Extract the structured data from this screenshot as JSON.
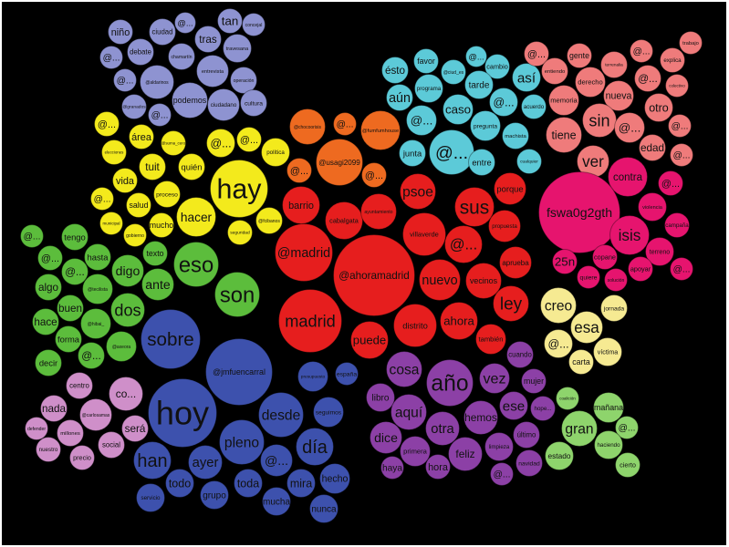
{
  "clusters": [
    {
      "id": "lavender",
      "color": "#8e93d1",
      "words": [
        "niño",
        "ciudad",
        "@...",
        "tan",
        "concejal",
        "tras",
        "@...",
        "debate",
        "chamartín",
        "travesana",
        "@...",
        "@aldarinos",
        "entrevista",
        "operación",
        "@granados",
        "@...",
        "podemos",
        "ciudadano",
        "cultura"
      ]
    },
    {
      "id": "yellow",
      "color": "#f3ea1c",
      "words": [
        "@...",
        "área",
        "@suma_cero",
        "@...",
        "@...",
        "política",
        "elecciones",
        "tuit",
        "quién",
        "hay",
        "vida",
        "@...",
        "proceso",
        "salud",
        "hacer",
        "@fcibanos",
        "municipal",
        "mucho",
        "gobierno",
        "seguridad"
      ]
    },
    {
      "id": "orange",
      "color": "#ee6a20",
      "words": [
        "@chocoorisis",
        "@...",
        "@fumfumhouse",
        "@usagi2099",
        "@...",
        "@..."
      ]
    },
    {
      "id": "red",
      "color": "#e61e1e",
      "words": [
        "barrio",
        "cabalgata",
        "ayuntamiento",
        "psoe",
        "sus",
        "porque",
        "propuesta",
        "villaverde",
        "@...",
        "aprueba",
        "@madrid",
        "@ahoramadrid",
        "nuevo",
        "vecinos",
        "ley",
        "madrid",
        "distrito",
        "ahora",
        "también",
        "puede"
      ]
    },
    {
      "id": "cyan",
      "color": "#5ccad8",
      "words": [
        "favor",
        "ésto",
        "@...",
        "cambio",
        "@ciud_es",
        "así",
        "programa",
        "tarde",
        "aún",
        "caso",
        "@...",
        "acuerdo",
        "@...",
        "pregunta",
        "machista",
        "junta",
        "@...",
        "entre",
        "cualquier"
      ]
    },
    {
      "id": "salmon",
      "color": "#ef7b7b",
      "words": [
        "trabajo",
        "@...",
        "gente",
        "@...",
        "explica",
        "entiendo",
        "terrenalia",
        "derecho",
        "@...",
        "colectivo",
        "memoria",
        "nueva",
        "otro",
        "sin",
        "@...",
        "@...",
        "tiene",
        "edad",
        "@...",
        "ver"
      ]
    },
    {
      "id": "magenta",
      "color": "#e6146e",
      "words": [
        "contra",
        "@...",
        "fswa0g2gth",
        "violencia",
        "campaña",
        "isis",
        "terreno",
        "25n",
        "copane",
        "apoyar",
        "@...",
        "quiere",
        "solución"
      ]
    },
    {
      "id": "paleyellow",
      "color": "#f6ea92",
      "words": [
        "creo",
        "jornada",
        "esa",
        "@...",
        "víctima",
        "carta"
      ]
    },
    {
      "id": "green",
      "color": "#5cbd3c",
      "words": [
        "@...",
        "tengo",
        "@...",
        "hasta",
        "@...",
        "digo",
        "texto",
        "eso",
        "algo",
        "@tecilista",
        "ante",
        "son",
        "buen",
        "dos",
        "hace",
        "@hibai_",
        "forma",
        "@axeora",
        "@...",
        "decir"
      ]
    },
    {
      "id": "blue",
      "color": "#3d51ad",
      "words": [
        "sobre",
        "@jmfuencarral",
        "hoy",
        "presupuesto",
        "españa",
        "desde",
        "seguimos",
        "pleno",
        "día",
        "han",
        "ayer",
        "@...",
        "hecho",
        "todo",
        "toda",
        "mira",
        "servicio",
        "grupo",
        "mucha",
        "nunca"
      ]
    },
    {
      "id": "lilac",
      "color": "#cf8fc9",
      "words": [
        "centro",
        "co...",
        "nada",
        "@carlosamas",
        "será",
        "defender",
        "millones",
        "social",
        "nuestro",
        "precio"
      ]
    },
    {
      "id": "purple",
      "color": "#8c40a6",
      "words": [
        "cuando",
        "cosa",
        "año",
        "vez",
        "mujer",
        "libro",
        "aquí",
        "ese",
        "hope...",
        "hemos",
        "otra",
        "último",
        "dice",
        "primera",
        "feliz",
        "limpieza",
        "navidad",
        "haya",
        "hora",
        "@..."
      ]
    },
    {
      "id": "lightgreen",
      "color": "#8ed46c",
      "words": [
        "coalición",
        "mañana",
        "gran",
        "@...",
        "haciendo",
        "estado",
        "cierto"
      ]
    }
  ]
}
